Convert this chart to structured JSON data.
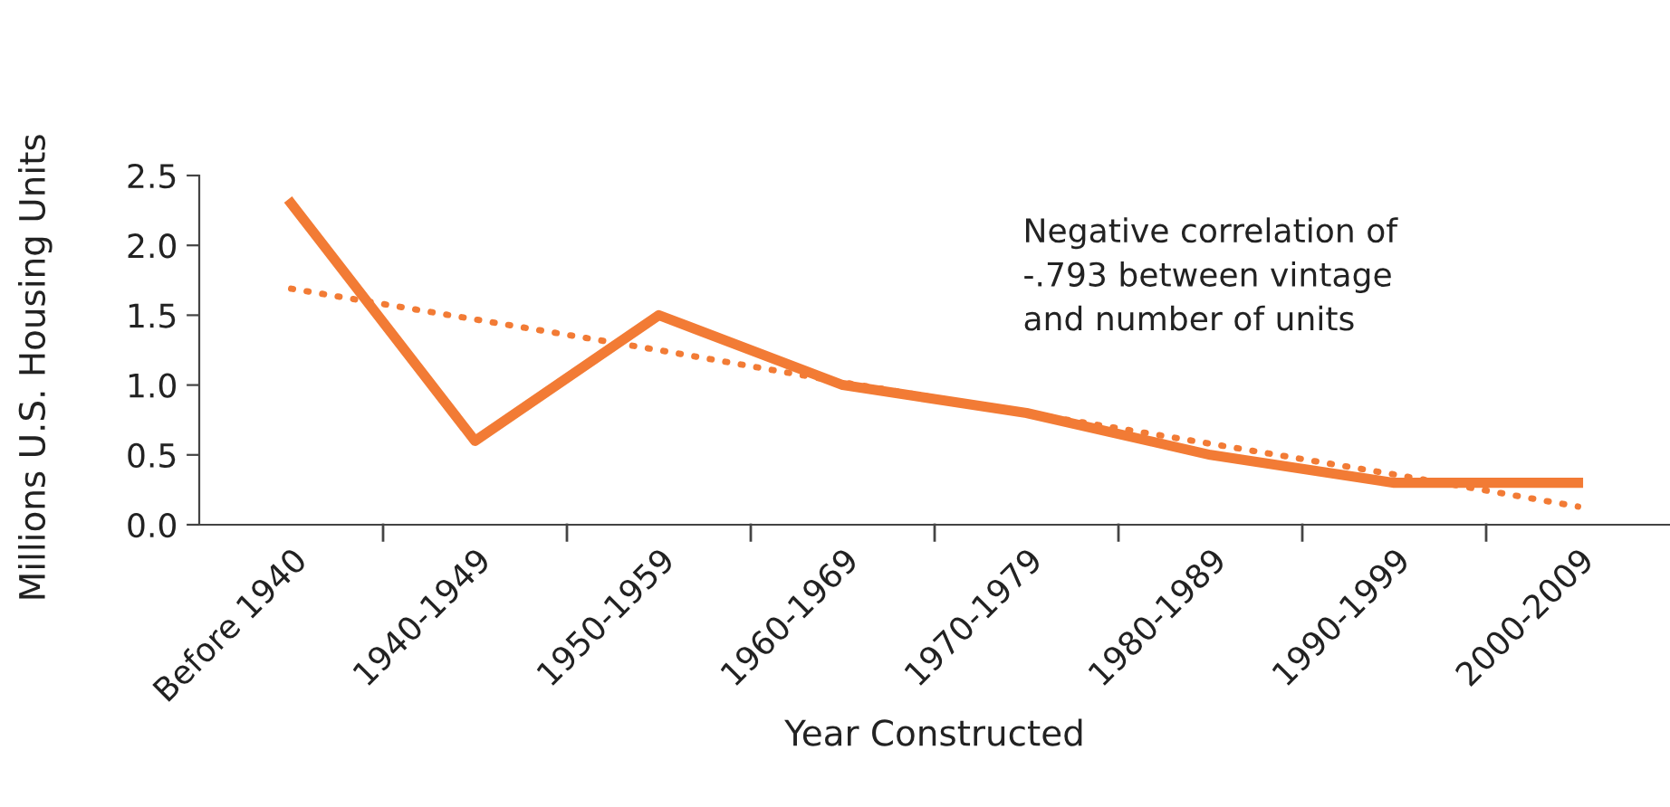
{
  "chart_data": {
    "type": "line",
    "xlabel": "Year Constructed",
    "ylabel": "Millions U.S. Housing Units",
    "categories": [
      "Before 1940",
      "1940-1949",
      "1950-1959",
      "1960-1969",
      "1970-1979",
      "1980-1989",
      "1990-1999",
      "2000-2009"
    ],
    "series": [
      {
        "color": "#f27b35",
        "line_style": "solid",
        "values": [
          2.3,
          0.6,
          1.5,
          1.0,
          0.8,
          0.5,
          0.3,
          0.3
        ]
      },
      {
        "color": "#f27b35",
        "line_style": "dotted",
        "values": [
          1.69,
          1.47,
          1.25,
          1.02,
          0.8,
          0.58,
          0.36,
          0.13
        ]
      }
    ],
    "ylim": [
      0,
      2.5
    ],
    "yticks": [
      {
        "value": 0,
        "label": "0.0"
      },
      0.5,
      {
        "value": 1,
        "label": "1.0"
      },
      1.5,
      {
        "value": 2,
        "label": "2.0"
      },
      2.5
    ],
    "annotations": [
      "Negative correlation of\n-.793 between vintage\nand number of units"
    ],
    "grid": false,
    "legend": false,
    "marker": "none"
  }
}
